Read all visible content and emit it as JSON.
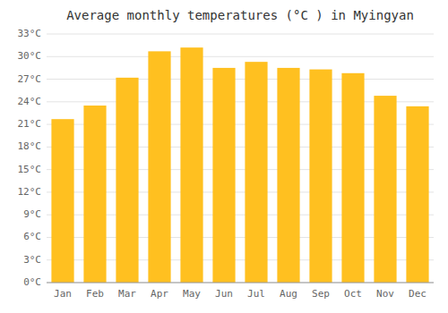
{
  "chart_data": {
    "type": "bar",
    "title": "Average monthly temperatures (°C ) in Myingyan",
    "categories": [
      "Jan",
      "Feb",
      "Mar",
      "Apr",
      "May",
      "Jun",
      "Jul",
      "Aug",
      "Sep",
      "Oct",
      "Nov",
      "Dec"
    ],
    "values": [
      21.7,
      23.5,
      27.2,
      30.7,
      31.2,
      28.5,
      29.3,
      28.5,
      28.3,
      27.8,
      24.8,
      23.4
    ],
    "color": "#FFC020",
    "ylim": [
      0,
      33
    ],
    "yticks": [
      {
        "value": 0,
        "label": "0°C"
      },
      {
        "value": 3,
        "label": "3°C"
      },
      {
        "value": 6,
        "label": "6°C"
      },
      {
        "value": 9,
        "label": "9°C"
      },
      {
        "value": 12,
        "label": "12°C"
      },
      {
        "value": 15,
        "label": "15°C"
      },
      {
        "value": 18,
        "label": "18°C"
      },
      {
        "value": 21,
        "label": "21°C"
      },
      {
        "value": 24,
        "label": "24°C"
      },
      {
        "value": 27,
        "label": "27°C"
      },
      {
        "value": 30,
        "label": "30°C"
      },
      {
        "value": 33,
        "label": "33°C"
      }
    ],
    "grid": true
  }
}
